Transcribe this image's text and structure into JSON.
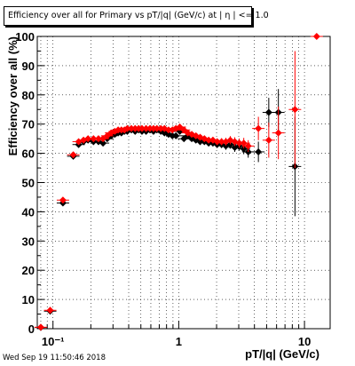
{
  "title": "Efficiency over all for Primary vs pT/|q| (GeV/c) at |  η | <= 1.0",
  "timestamp": "Wed Sep 19 11:50:46 2018",
  "chart_data": {
    "type": "scatter",
    "xlabel": "pT/|q| (GeV/c)",
    "ylabel": "Efficiency over all (%)",
    "xscale": "log",
    "xlim": [
      0.075,
      16
    ],
    "ylim": [
      0,
      100
    ],
    "grid": true,
    "x_tick_labels": [
      "10⁻¹",
      "1",
      "10"
    ],
    "y_tick_labels": [
      "0",
      "10",
      "20",
      "30",
      "40",
      "50",
      "60",
      "70",
      "80",
      "90",
      "100"
    ],
    "series": [
      {
        "color": "#000000",
        "marker": "diamond",
        "points": [
          [
            0.08,
            0.4,
            0.3
          ],
          [
            0.095,
            6.0,
            0.6
          ],
          [
            0.12,
            43.0,
            0.8
          ],
          [
            0.145,
            59.0,
            0.7
          ],
          [
            0.16,
            63.0,
            0.6
          ],
          [
            0.175,
            64.0,
            0.5
          ],
          [
            0.19,
            64.5,
            0.5
          ],
          [
            0.21,
            64.0,
            0.5
          ],
          [
            0.23,
            64.0,
            0.5
          ],
          [
            0.25,
            63.5,
            0.5
          ],
          [
            0.27,
            65.0,
            0.5
          ],
          [
            0.29,
            66.0,
            0.5
          ],
          [
            0.31,
            66.5,
            0.5
          ],
          [
            0.33,
            67.0,
            0.5
          ],
          [
            0.35,
            67.0,
            0.5
          ],
          [
            0.37,
            67.5,
            0.5
          ],
          [
            0.39,
            67.5,
            0.5
          ],
          [
            0.42,
            68.0,
            0.5
          ],
          [
            0.45,
            67.5,
            0.5
          ],
          [
            0.48,
            68.0,
            0.5
          ],
          [
            0.51,
            67.5,
            0.5
          ],
          [
            0.55,
            67.5,
            0.5
          ],
          [
            0.59,
            68.0,
            0.5
          ],
          [
            0.63,
            67.5,
            0.5
          ],
          [
            0.67,
            68.0,
            0.6
          ],
          [
            0.72,
            67.5,
            0.6
          ],
          [
            0.77,
            67.0,
            0.6
          ],
          [
            0.83,
            66.5,
            0.6
          ],
          [
            0.89,
            66.0,
            0.7
          ],
          [
            0.95,
            66.0,
            0.7
          ],
          [
            1.02,
            67.5,
            0.7
          ],
          [
            1.1,
            65.0,
            0.8
          ],
          [
            1.18,
            66.0,
            0.8
          ],
          [
            1.27,
            65.0,
            0.8
          ],
          [
            1.37,
            64.5,
            0.9
          ],
          [
            1.48,
            64.0,
            0.9
          ],
          [
            1.6,
            64.0,
            1.0
          ],
          [
            1.73,
            63.5,
            1.0
          ],
          [
            1.87,
            63.5,
            1.1
          ],
          [
            2.02,
            63.0,
            1.1
          ],
          [
            2.19,
            63.0,
            1.2
          ],
          [
            2.37,
            62.5,
            1.3
          ],
          [
            2.57,
            63.0,
            1.4
          ],
          [
            2.79,
            62.0,
            1.5
          ],
          [
            3.03,
            62.5,
            1.6
          ],
          [
            3.29,
            61.5,
            1.8
          ],
          [
            3.57,
            60.5,
            2.0
          ],
          [
            4.3,
            60.5,
            3.5
          ],
          [
            5.2,
            74.0,
            5.0
          ],
          [
            6.2,
            74.0,
            8.0
          ],
          [
            8.4,
            55.5,
            17.0
          ]
        ]
      },
      {
        "color": "#ff0000",
        "marker": "diamond",
        "points": [
          [
            0.08,
            0.5,
            0.3
          ],
          [
            0.095,
            6.3,
            0.6
          ],
          [
            0.12,
            44.0,
            0.8
          ],
          [
            0.145,
            59.5,
            0.7
          ],
          [
            0.16,
            64.0,
            0.6
          ],
          [
            0.175,
            64.5,
            0.5
          ],
          [
            0.19,
            65.0,
            0.5
          ],
          [
            0.21,
            65.0,
            0.5
          ],
          [
            0.23,
            65.0,
            0.5
          ],
          [
            0.25,
            65.0,
            0.5
          ],
          [
            0.27,
            66.0,
            0.5
          ],
          [
            0.29,
            67.0,
            0.5
          ],
          [
            0.31,
            67.5,
            0.5
          ],
          [
            0.33,
            68.0,
            0.5
          ],
          [
            0.35,
            68.0,
            0.5
          ],
          [
            0.37,
            68.0,
            0.5
          ],
          [
            0.39,
            68.5,
            0.5
          ],
          [
            0.42,
            68.5,
            0.5
          ],
          [
            0.45,
            68.5,
            0.5
          ],
          [
            0.48,
            68.5,
            0.5
          ],
          [
            0.51,
            68.5,
            0.5
          ],
          [
            0.55,
            68.5,
            0.5
          ],
          [
            0.59,
            68.5,
            0.5
          ],
          [
            0.63,
            68.5,
            0.5
          ],
          [
            0.67,
            68.5,
            0.6
          ],
          [
            0.72,
            68.5,
            0.6
          ],
          [
            0.77,
            68.5,
            0.6
          ],
          [
            0.83,
            68.0,
            0.6
          ],
          [
            0.89,
            68.0,
            0.7
          ],
          [
            0.95,
            68.5,
            0.7
          ],
          [
            1.02,
            69.0,
            0.7
          ],
          [
            1.1,
            68.0,
            0.8
          ],
          [
            1.18,
            67.0,
            0.8
          ],
          [
            1.27,
            66.5,
            0.8
          ],
          [
            1.37,
            66.0,
            0.9
          ],
          [
            1.48,
            65.5,
            0.9
          ],
          [
            1.6,
            65.0,
            1.0
          ],
          [
            1.73,
            64.5,
            1.0
          ],
          [
            1.87,
            64.5,
            1.1
          ],
          [
            2.02,
            64.0,
            1.1
          ],
          [
            2.19,
            64.0,
            1.2
          ],
          [
            2.37,
            64.0,
            1.3
          ],
          [
            2.57,
            64.5,
            1.4
          ],
          [
            2.79,
            64.0,
            1.5
          ],
          [
            3.03,
            63.5,
            1.6
          ],
          [
            3.29,
            63.5,
            1.8
          ],
          [
            3.57,
            62.5,
            2.0
          ],
          [
            4.3,
            68.5,
            4.0
          ],
          [
            5.2,
            64.5,
            6.0
          ],
          [
            6.2,
            67.0,
            9.0
          ],
          [
            8.4,
            75.0,
            20.0
          ],
          [
            12.5,
            100.0,
            0.0
          ]
        ]
      }
    ]
  }
}
